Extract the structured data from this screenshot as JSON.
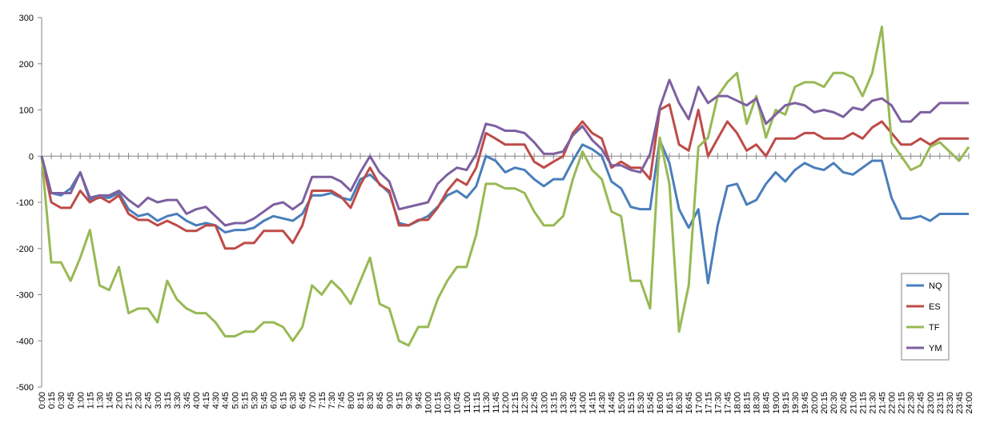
{
  "chart_data": {
    "type": "line",
    "categories": [
      "0:00",
      "0:15",
      "0:30",
      "0:45",
      "1:00",
      "1:15",
      "1:30",
      "1:45",
      "2:00",
      "2:15",
      "2:30",
      "2:45",
      "3:00",
      "3:15",
      "3:30",
      "3:45",
      "4:00",
      "4:15",
      "4:30",
      "4:45",
      "5:00",
      "5:15",
      "5:30",
      "5:45",
      "6:00",
      "6:15",
      "6:30",
      "6:45",
      "7:00",
      "7:15",
      "7:30",
      "7:45",
      "8:00",
      "8:15",
      "8:30",
      "8:45",
      "9:00",
      "9:15",
      "9:30",
      "9:45",
      "10:00",
      "10:15",
      "10:30",
      "10:45",
      "11:00",
      "11:15",
      "11:30",
      "11:45",
      "12:00",
      "12:15",
      "12:30",
      "12:45",
      "13:00",
      "13:15",
      "13:30",
      "13:45",
      "14:00",
      "14:15",
      "14:30",
      "14:45",
      "15:00",
      "15:15",
      "15:30",
      "15:45",
      "16:00",
      "16:15",
      "16:30",
      "16:45",
      "17:00",
      "17:15",
      "17:30",
      "17:45",
      "18:00",
      "18:15",
      "18:30",
      "18:45",
      "19:00",
      "19:15",
      "19:30",
      "19:45",
      "20:00",
      "20:15",
      "20:30",
      "20:45",
      "21:00",
      "21:15",
      "21:30",
      "21:45",
      "22:00",
      "22:15",
      "22:30",
      "22:45",
      "23:00",
      "23:15",
      "23:30",
      "23:45",
      "24:00"
    ],
    "series": [
      {
        "name": "NQ",
        "color": "#4a7ebb",
        "values": [
          0,
          -80,
          -85,
          -70,
          -35,
          -95,
          -90,
          -90,
          -80,
          -115,
          -130,
          -125,
          -140,
          -130,
          -125,
          -140,
          -150,
          -145,
          -150,
          -165,
          -160,
          -160,
          -155,
          -140,
          -130,
          -135,
          -140,
          -125,
          -85,
          -85,
          -80,
          -90,
          -95,
          -50,
          -40,
          -60,
          -80,
          -145,
          -150,
          -140,
          -130,
          -110,
          -85,
          -75,
          -90,
          -65,
          0,
          -10,
          -35,
          -25,
          -30,
          -50,
          -65,
          -50,
          -50,
          -10,
          25,
          15,
          0,
          -55,
          -70,
          -110,
          -115,
          -115,
          35,
          -15,
          -115,
          -155,
          -115,
          -275,
          -150,
          -65,
          -60,
          -105,
          -95,
          -60,
          -35,
          -55,
          -30,
          -15,
          -25,
          -30,
          -15,
          -35,
          -40,
          -25,
          -10,
          -10,
          -90,
          -135,
          -135,
          -130,
          -140,
          -125,
          -125,
          -125,
          -125
        ]
      },
      {
        "name": "ES",
        "color": "#be4b48",
        "values": [
          0,
          -100,
          -112,
          -112,
          -75,
          -100,
          -88,
          -100,
          -85,
          -125,
          -138,
          -138,
          -150,
          -140,
          -150,
          -162,
          -162,
          -150,
          -150,
          -200,
          -200,
          -188,
          -188,
          -162,
          -162,
          -162,
          -188,
          -150,
          -75,
          -75,
          -75,
          -88,
          -112,
          -62,
          -25,
          -62,
          -75,
          -150,
          -150,
          -138,
          -138,
          -112,
          -75,
          -50,
          -62,
          -25,
          50,
          38,
          25,
          25,
          25,
          -12,
          -25,
          -12,
          0,
          50,
          75,
          50,
          38,
          -25,
          -12,
          -25,
          -25,
          -50,
          100,
          112,
          25,
          12,
          100,
          0,
          38,
          75,
          50,
          12,
          25,
          0,
          38,
          38,
          38,
          50,
          50,
          38,
          38,
          38,
          50,
          38,
          62,
          75,
          50,
          25,
          25,
          38,
          25,
          38,
          38,
          38,
          38
        ]
      },
      {
        "name": "TF",
        "color": "#98b954",
        "values": [
          0,
          -230,
          -230,
          -270,
          -220,
          -160,
          -280,
          -290,
          -240,
          -340,
          -330,
          -330,
          -360,
          -270,
          -310,
          -330,
          -340,
          -340,
          -360,
          -390,
          -390,
          -380,
          -380,
          -360,
          -360,
          -370,
          -400,
          -370,
          -280,
          -300,
          -270,
          -290,
          -320,
          -270,
          -220,
          -320,
          -330,
          -400,
          -410,
          -370,
          -370,
          -310,
          -270,
          -240,
          -240,
          -170,
          -60,
          -60,
          -70,
          -70,
          -80,
          -120,
          -150,
          -150,
          -130,
          -50,
          10,
          -30,
          -50,
          -120,
          -130,
          -270,
          -270,
          -330,
          40,
          -60,
          -380,
          -280,
          20,
          40,
          130,
          160,
          180,
          70,
          130,
          40,
          100,
          90,
          150,
          160,
          160,
          150,
          180,
          180,
          170,
          130,
          180,
          280,
          30,
          0,
          -30,
          -20,
          20,
          30,
          10,
          -10,
          20
        ]
      },
      {
        "name": "YM",
        "color": "#7d60a0",
        "values": [
          0,
          -80,
          -80,
          -80,
          -35,
          -90,
          -85,
          -85,
          -75,
          -95,
          -110,
          -90,
          -100,
          -95,
          -95,
          -125,
          -115,
          -110,
          -130,
          -150,
          -145,
          -145,
          -135,
          -120,
          -105,
          -100,
          -115,
          -100,
          -45,
          -45,
          -45,
          -55,
          -75,
          -35,
          0,
          -35,
          -55,
          -115,
          -110,
          -105,
          -100,
          -60,
          -40,
          -25,
          -30,
          5,
          70,
          65,
          55,
          55,
          50,
          30,
          5,
          5,
          10,
          45,
          65,
          35,
          15,
          -20,
          -20,
          -30,
          -35,
          5,
          105,
          165,
          115,
          80,
          150,
          115,
          130,
          130,
          120,
          110,
          125,
          70,
          90,
          110,
          115,
          110,
          95,
          100,
          95,
          85,
          105,
          100,
          120,
          125,
          110,
          75,
          75,
          95,
          95,
          115,
          115,
          115,
          115
        ]
      }
    ],
    "ylim": [
      -500,
      300
    ],
    "yticks": [
      -500,
      -400,
      -300,
      -200,
      -100,
      0,
      100,
      200,
      300
    ],
    "legend": "right"
  }
}
